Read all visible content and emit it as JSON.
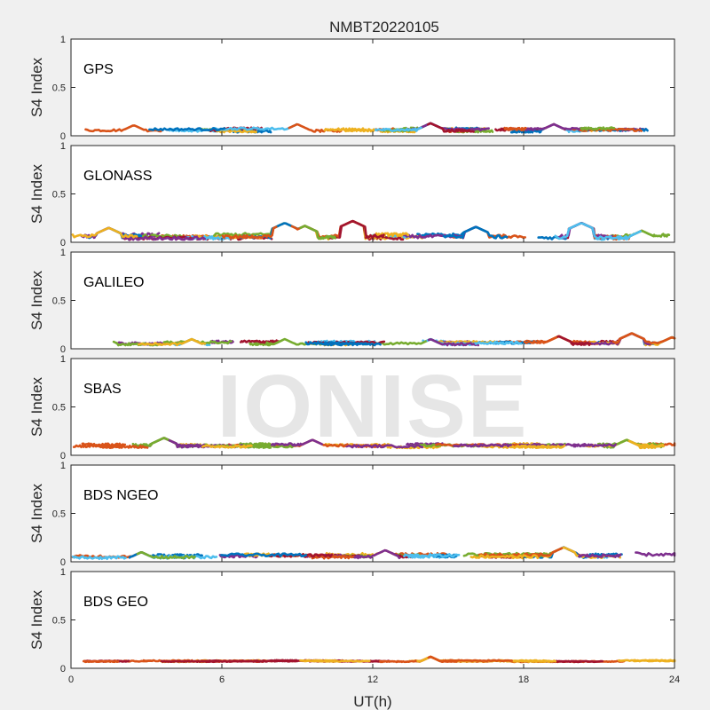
{
  "chart_data": {
    "type": "scatter",
    "title": "NMBT20220105",
    "xlabel": "UT(h)",
    "ylabel": "S4 Index",
    "xlim": [
      0,
      24
    ],
    "ylim": [
      0,
      1
    ],
    "xticks": [
      "0",
      "6",
      "12",
      "18",
      "24"
    ],
    "yticks": [
      "0",
      "0.5",
      "1"
    ],
    "watermark": "IONISE",
    "colors": [
      "#0072BD",
      "#D95319",
      "#EDB120",
      "#7E2F8E",
      "#77AC30",
      "#4DBEEE",
      "#A2142F"
    ],
    "panels": [
      {
        "label": "GPS",
        "baseline": 0.06,
        "spread": 0.03,
        "colors": [
          "#0072BD",
          "#D95319",
          "#EDB120",
          "#7E2F8E",
          "#77AC30",
          "#4DBEEE",
          "#A2142F"
        ],
        "peaks": [
          [
            2.5,
            0.11
          ],
          [
            9.0,
            0.12
          ],
          [
            14.3,
            0.13
          ],
          [
            19.2,
            0.12
          ]
        ]
      },
      {
        "label": "GLONASS",
        "baseline": 0.06,
        "spread": 0.04,
        "colors": [
          "#0072BD",
          "#D95319",
          "#EDB120",
          "#7E2F8E",
          "#77AC30",
          "#4DBEEE",
          "#A2142F"
        ],
        "peaks": [
          [
            1.5,
            0.15
          ],
          [
            8.5,
            0.2
          ],
          [
            9.3,
            0.17
          ],
          [
            11.2,
            0.22
          ],
          [
            16.1,
            0.16
          ],
          [
            20.3,
            0.2
          ],
          [
            22.7,
            0.12
          ]
        ]
      },
      {
        "label": "GALILEO",
        "baseline": 0.06,
        "spread": 0.03,
        "colors": [
          "#0072BD",
          "#D95319",
          "#EDB120",
          "#7E2F8E",
          "#77AC30",
          "#4DBEEE",
          "#A2142F"
        ],
        "peaks": [
          [
            1.3,
            0.12
          ],
          [
            4.8,
            0.1
          ],
          [
            8.5,
            0.1
          ],
          [
            14.3,
            0.1
          ],
          [
            19.4,
            0.13
          ],
          [
            22.3,
            0.16
          ],
          [
            23.9,
            0.12
          ]
        ]
      },
      {
        "label": "SBAS",
        "baseline": 0.1,
        "spread": 0.03,
        "colors": [
          "#EDB120",
          "#7E2F8E",
          "#77AC30",
          "#D95319"
        ],
        "peaks": [
          [
            3.7,
            0.18
          ],
          [
            9.6,
            0.16
          ],
          [
            22.1,
            0.16
          ]
        ]
      },
      {
        "label": "BDS NGEO",
        "baseline": 0.06,
        "spread": 0.035,
        "colors": [
          "#0072BD",
          "#D95319",
          "#EDB120",
          "#7E2F8E",
          "#77AC30",
          "#4DBEEE",
          "#A2142F"
        ],
        "peaks": [
          [
            2.8,
            0.1
          ],
          [
            12.5,
            0.12
          ],
          [
            19.6,
            0.15
          ],
          [
            22.5,
            0.1
          ]
        ]
      },
      {
        "label": "BDS GEO",
        "baseline": 0.075,
        "spread": 0.012,
        "colors": [
          "#EDB120",
          "#D95319",
          "#A2142F"
        ],
        "peaks": [
          [
            14.3,
            0.12
          ]
        ]
      }
    ]
  }
}
